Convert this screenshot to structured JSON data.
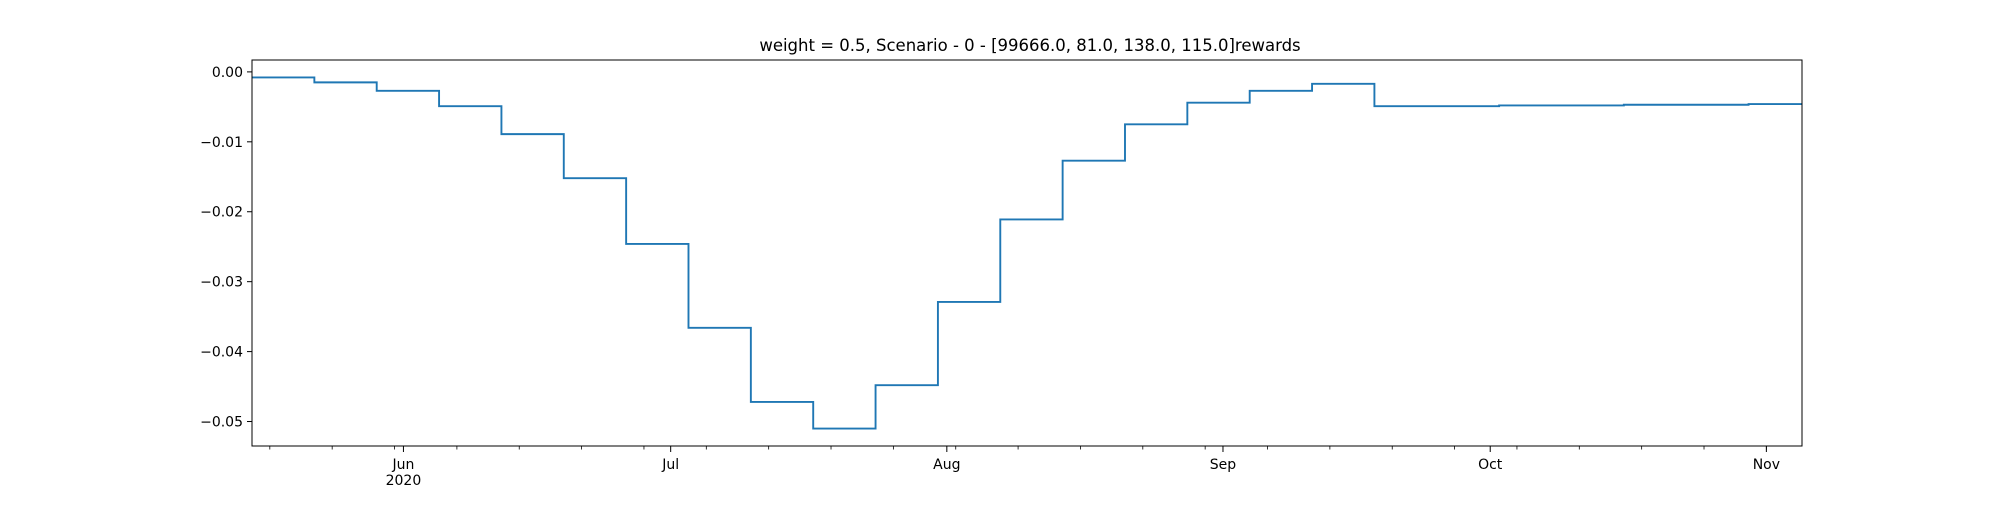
{
  "chart_data": {
    "type": "line",
    "step": true,
    "title": "weight = 0.5, Scenario - 0 - [99666.0, 81.0, 138.0, 115.0]rewards",
    "xlabel": "",
    "ylabel": "",
    "xlim": [
      "2020-05-15",
      "2020-11-05"
    ],
    "ylim": [
      -0.0535,
      0.0017
    ],
    "grid": false,
    "legend": "none",
    "line_color": "#1f77b4",
    "y_ticks": [
      0.0,
      -0.01,
      -0.02,
      -0.03,
      -0.04,
      -0.05
    ],
    "y_tick_labels": [
      "0.00",
      "−0.01",
      "−0.02",
      "−0.03",
      "−0.04",
      "−0.05"
    ],
    "x_ticks": [
      {
        "date": "2020-06-01",
        "label": "Jun",
        "sublabel": "2020"
      },
      {
        "date": "2020-07-01",
        "label": "Jul",
        "sublabel": ""
      },
      {
        "date": "2020-08-01",
        "label": "Aug",
        "sublabel": ""
      },
      {
        "date": "2020-09-01",
        "label": "Sep",
        "sublabel": ""
      },
      {
        "date": "2020-10-01",
        "label": "Oct",
        "sublabel": ""
      },
      {
        "date": "2020-11-01",
        "label": "Nov",
        "sublabel": ""
      }
    ],
    "x_minor_ticks": [
      "2020-05-17",
      "2020-05-24",
      "2020-05-31",
      "2020-06-07",
      "2020-06-14",
      "2020-06-21",
      "2020-06-28",
      "2020-07-05",
      "2020-07-12",
      "2020-07-19",
      "2020-07-26",
      "2020-08-02",
      "2020-08-09",
      "2020-08-16",
      "2020-08-23",
      "2020-08-30",
      "2020-09-06",
      "2020-09-13",
      "2020-09-20",
      "2020-09-27",
      "2020-10-04",
      "2020-10-11",
      "2020-10-18",
      "2020-10-25",
      "2020-11-01"
    ],
    "series": [
      {
        "x": [
          "2020-05-15",
          "2020-05-22",
          "2020-05-29",
          "2020-06-05",
          "2020-06-12",
          "2020-06-19",
          "2020-06-26",
          "2020-07-03",
          "2020-07-10",
          "2020-07-17",
          "2020-07-24",
          "2020-07-31",
          "2020-08-07",
          "2020-08-14",
          "2020-08-21",
          "2020-08-28",
          "2020-09-04",
          "2020-09-11",
          "2020-09-18",
          "2020-09-25",
          "2020-10-02",
          "2020-10-09",
          "2020-10-16",
          "2020-10-23",
          "2020-10-30",
          "2020-11-05"
        ],
        "values": [
          -0.0008,
          -0.0015,
          -0.0027,
          -0.0049,
          -0.0089,
          -0.0152,
          -0.0246,
          -0.0366,
          -0.0472,
          -0.051,
          -0.0448,
          -0.0329,
          -0.0211,
          -0.0127,
          -0.0075,
          -0.0044,
          -0.0027,
          -0.0017,
          -0.0049,
          -0.0049,
          -0.0048,
          -0.0048,
          -0.0047,
          -0.0047,
          -0.0046,
          -0.0046
        ]
      }
    ]
  }
}
